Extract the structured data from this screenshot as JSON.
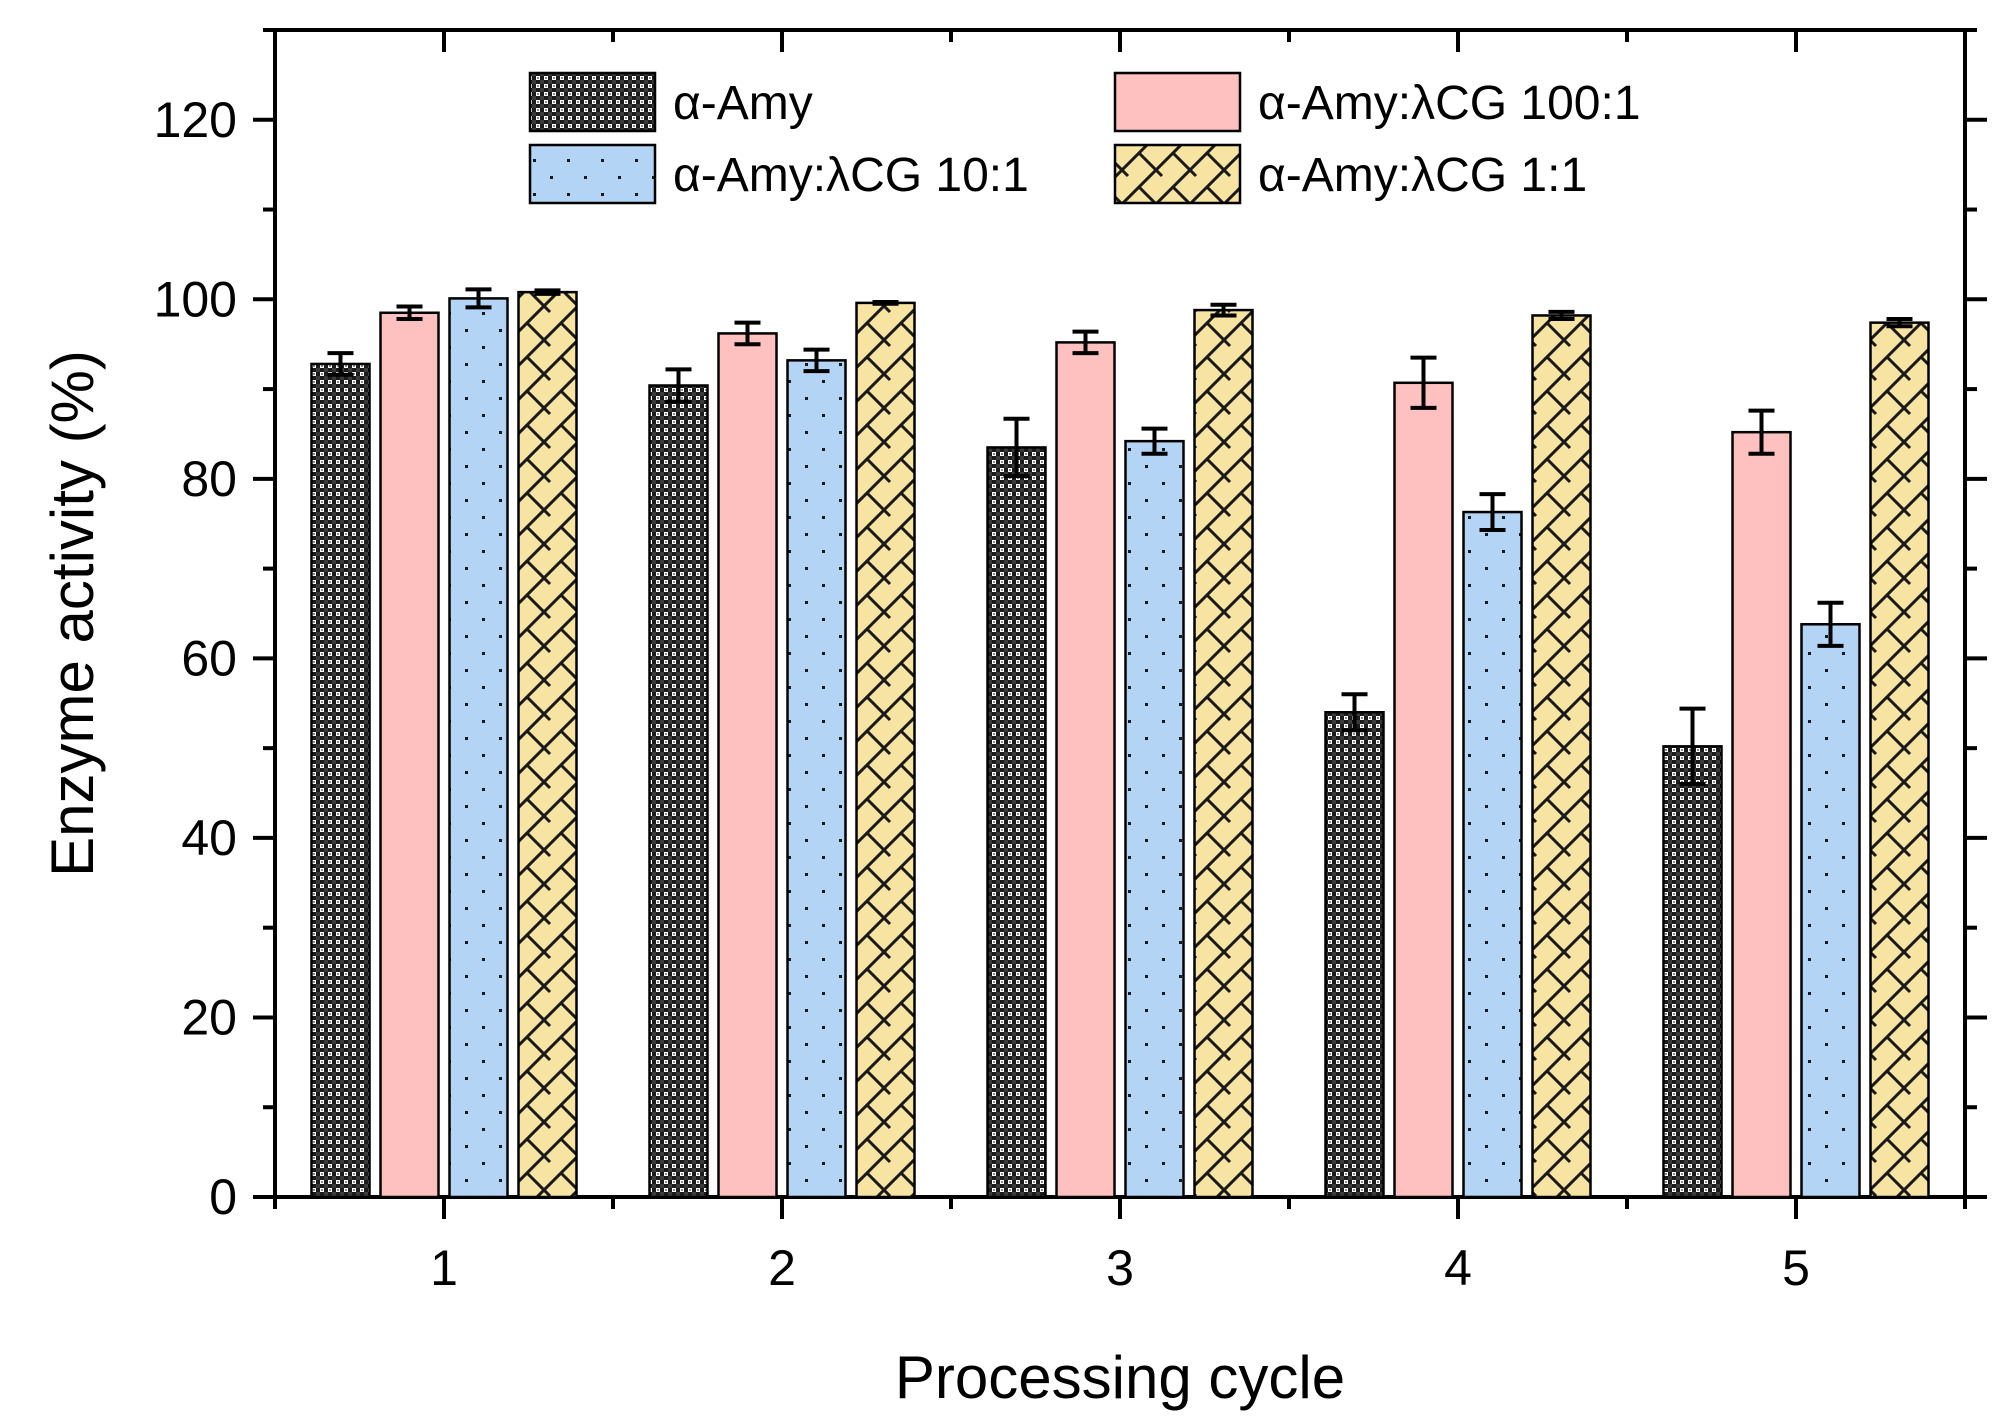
{
  "chart_data": {
    "type": "bar",
    "title": "",
    "xlabel": "Processing cycle",
    "ylabel": "Enzyme activity (%)",
    "ylim": [
      0,
      130
    ],
    "yticks": [
      0,
      20,
      40,
      60,
      80,
      100,
      120
    ],
    "categories": [
      "1",
      "2",
      "3",
      "4",
      "5"
    ],
    "legend_position": "top-center",
    "series": [
      {
        "name": "α-Amy",
        "values": [
          92.8,
          90.4,
          83.5,
          54.0,
          50.2
        ],
        "errors": [
          1.2,
          1.8,
          3.2,
          2.0,
          4.2
        ],
        "color": "#1a1a1a",
        "pattern": "crosshatch"
      },
      {
        "name": "α-Amy:λCG 100:1",
        "values": [
          98.5,
          96.2,
          95.2,
          90.7,
          85.2
        ],
        "errors": [
          0.7,
          1.2,
          1.2,
          2.8,
          2.4
        ],
        "color": "#ffc0c0",
        "pattern": "none"
      },
      {
        "name": "α-Amy:λCG 10:1",
        "values": [
          100.1,
          93.2,
          84.2,
          76.3,
          63.8
        ],
        "errors": [
          1.0,
          1.2,
          1.4,
          2.0,
          2.4
        ],
        "color": "#b3d4f5",
        "pattern": "dots"
      },
      {
        "name": "α-Amy:λCG 1:1",
        "values": [
          100.8,
          99.6,
          98.8,
          98.2,
          97.4
        ],
        "errors": [
          0.2,
          0.1,
          0.6,
          0.4,
          0.4
        ],
        "color": "#f8e4a2",
        "pattern": "diagonal-hatch"
      }
    ]
  }
}
